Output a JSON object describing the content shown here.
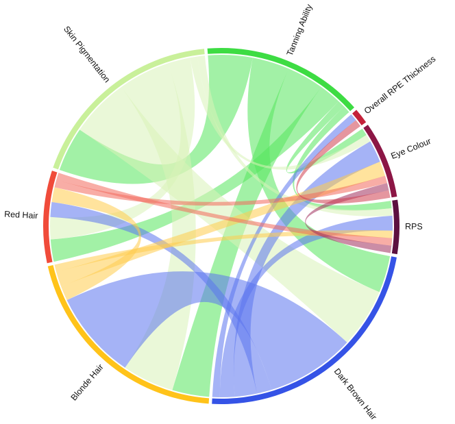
{
  "chart_data": {
    "type": "chord",
    "title": "",
    "groups": [
      {
        "id": "tan",
        "label": "Tanning Ability",
        "color": "#3ddc43"
      },
      {
        "id": "rpe",
        "label": "Overall RPE Thickness",
        "color": "#c4213a"
      },
      {
        "id": "eye",
        "label": "Eye Colour",
        "color": "#8c1645"
      },
      {
        "id": "rps",
        "label": "RPS",
        "color": "#5c1040"
      },
      {
        "id": "dbh",
        "label": "Dark Brown Hair",
        "color": "#3553e6"
      },
      {
        "id": "blh",
        "label": "Blonde Hair",
        "color": "#ffc31a"
      },
      {
        "id": "red",
        "label": "Red Hair",
        "color": "#f04b3a"
      },
      {
        "id": "skn",
        "label": "Skin Pigmentation",
        "color": "#c9f09a"
      }
    ],
    "ribbons": [
      {
        "source": "tan",
        "target": "skn",
        "value": 6,
        "color": "#56e65c"
      },
      {
        "source": "tan",
        "target": "dbh",
        "value": 5,
        "color": "#56e65c"
      },
      {
        "source": "tan",
        "target": "blh",
        "value": 5,
        "color": "#56e65c"
      },
      {
        "source": "tan",
        "target": "red",
        "value": 3,
        "color": "#56e65c"
      },
      {
        "source": "tan",
        "target": "eye",
        "value": 1,
        "color": "#56e65c"
      },
      {
        "source": "tan",
        "target": "rps",
        "value": 1,
        "color": "#56e65c"
      },
      {
        "source": "skn",
        "target": "dbh",
        "value": 8,
        "color": "#d8f3b8"
      },
      {
        "source": "skn",
        "target": "blh",
        "value": 7,
        "color": "#d8f3b8"
      },
      {
        "source": "skn",
        "target": "red",
        "value": 3,
        "color": "#d8f3b8"
      },
      {
        "source": "skn",
        "target": "eye",
        "value": 1,
        "color": "#d8f3b8"
      },
      {
        "source": "skn",
        "target": "rps",
        "value": 1,
        "color": "#d8f3b8"
      },
      {
        "source": "dbh",
        "target": "blh",
        "value": 12,
        "color": "#5b74ee"
      },
      {
        "source": "dbh",
        "target": "red",
        "value": 2,
        "color": "#5b74ee"
      },
      {
        "source": "dbh",
        "target": "eye",
        "value": 3,
        "color": "#5b74ee"
      },
      {
        "source": "dbh",
        "target": "rps",
        "value": 2,
        "color": "#5b74ee"
      },
      {
        "source": "dbh",
        "target": "rpe",
        "value": 1,
        "color": "#5b74ee"
      },
      {
        "source": "blh",
        "target": "red",
        "value": 2,
        "color": "#ffcc4d"
      },
      {
        "source": "blh",
        "target": "eye",
        "value": 2,
        "color": "#ffcc4d"
      },
      {
        "source": "blh",
        "target": "rps",
        "value": 1,
        "color": "#ffcc4d"
      },
      {
        "source": "red",
        "target": "eye",
        "value": 1,
        "color": "#f36a5c"
      },
      {
        "source": "red",
        "target": "rps",
        "value": 1,
        "color": "#f36a5c"
      },
      {
        "source": "eye",
        "target": "rps",
        "value": 1,
        "color": "#a0305c"
      },
      {
        "source": "rpe",
        "target": "eye",
        "value": 1,
        "color": "#d04050"
      }
    ]
  }
}
